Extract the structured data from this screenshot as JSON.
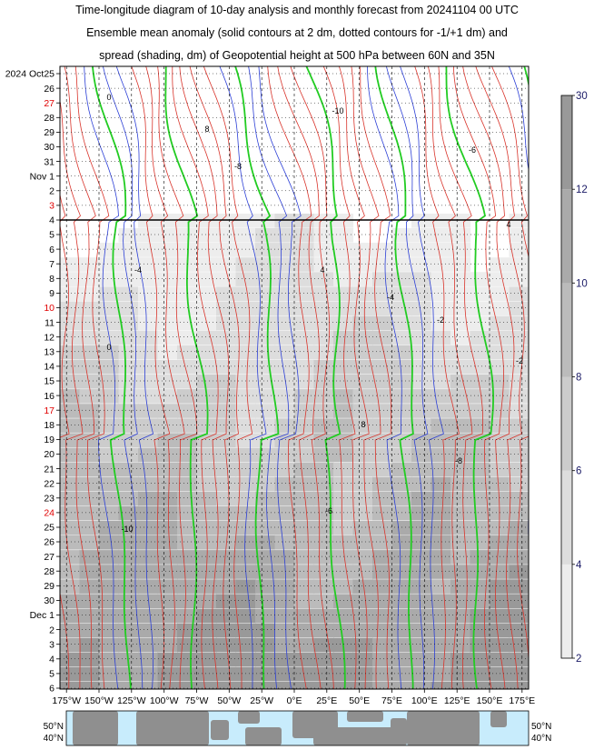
{
  "title_lines": [
    "Time-longitude diagram of 10-day analysis and monthly forecast from 20241104 00 UTC",
    "Ensemble mean anomaly (solid contours at 2 dm, dotted contours for -1/+1 dm) and",
    "spread (shading, dm) of Geopotential height at 500 hPa between 60N and 35N"
  ],
  "chart_data": {
    "type": "heatmap",
    "title": "Time-longitude diagram of 10-day analysis and monthly forecast from 20241104 00 UTC",
    "y_axis": {
      "first_label": "2024 Oct25",
      "labels": [
        "2024 Oct25",
        "26",
        "27",
        "28",
        "29",
        "30",
        "31",
        "Nov 1",
        "2",
        "3",
        "4",
        "5",
        "6",
        "7",
        "8",
        "9",
        "10",
        "11",
        "12",
        "13",
        "14",
        "15",
        "16",
        "17",
        "18",
        "19",
        "20",
        "21",
        "22",
        "23",
        "24",
        "25",
        "26",
        "27",
        "28",
        "29",
        "30",
        "Dec 1",
        "2",
        "3",
        "4",
        "5",
        "6"
      ],
      "red_labels": [
        "27",
        "3",
        "10",
        "17",
        "24",
        "1"
      ],
      "analysis_forecast_boundary": "4"
    },
    "x_axis": {
      "labels": [
        "175°W",
        "150°W",
        "125°W",
        "100°W",
        "75°W",
        "50°W",
        "25°W",
        "0°E",
        "25°E",
        "50°E",
        "75°E",
        "100°E",
        "125°E",
        "150°E",
        "175°E"
      ],
      "range_deg": [
        -180,
        180
      ]
    },
    "colorbar": {
      "labels": [
        "2",
        "4",
        "6",
        "8",
        "10",
        "12",
        "30"
      ],
      "shades": [
        "#ededed",
        "#dddddd",
        "#cccccc",
        "#bbbbbb",
        "#aaaaaa",
        "#999999"
      ]
    },
    "contour_colors": {
      "positive": "#d9342b",
      "negative": "#2c3fd6",
      "zero": "#22cc22",
      "zero_label": "0",
      "sample_labels": [
        "0",
        "8",
        "-8",
        "-10",
        "-6",
        "-4",
        "4",
        "-2"
      ]
    },
    "map_strip": {
      "lat_labels_left": [
        "50°N",
        "40°N"
      ],
      "lat_labels_right": [
        "50°N",
        "40°N"
      ],
      "ocean_color": "#c8ecfc",
      "land_color": "#8f8f8f"
    }
  }
}
